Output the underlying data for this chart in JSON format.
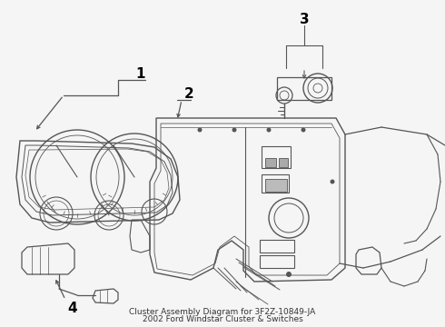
{
  "bg_color": "#f5f5f5",
  "line_color": "#555555",
  "label_color": "#000000",
  "title_line1": "2002 Ford Windstar Cluster & Switches",
  "title_line2": "Cluster Assembly Diagram for 3F2Z-10849-JA",
  "figsize": [
    4.9,
    3.6
  ],
  "dpi": 100,
  "lw": 0.9
}
